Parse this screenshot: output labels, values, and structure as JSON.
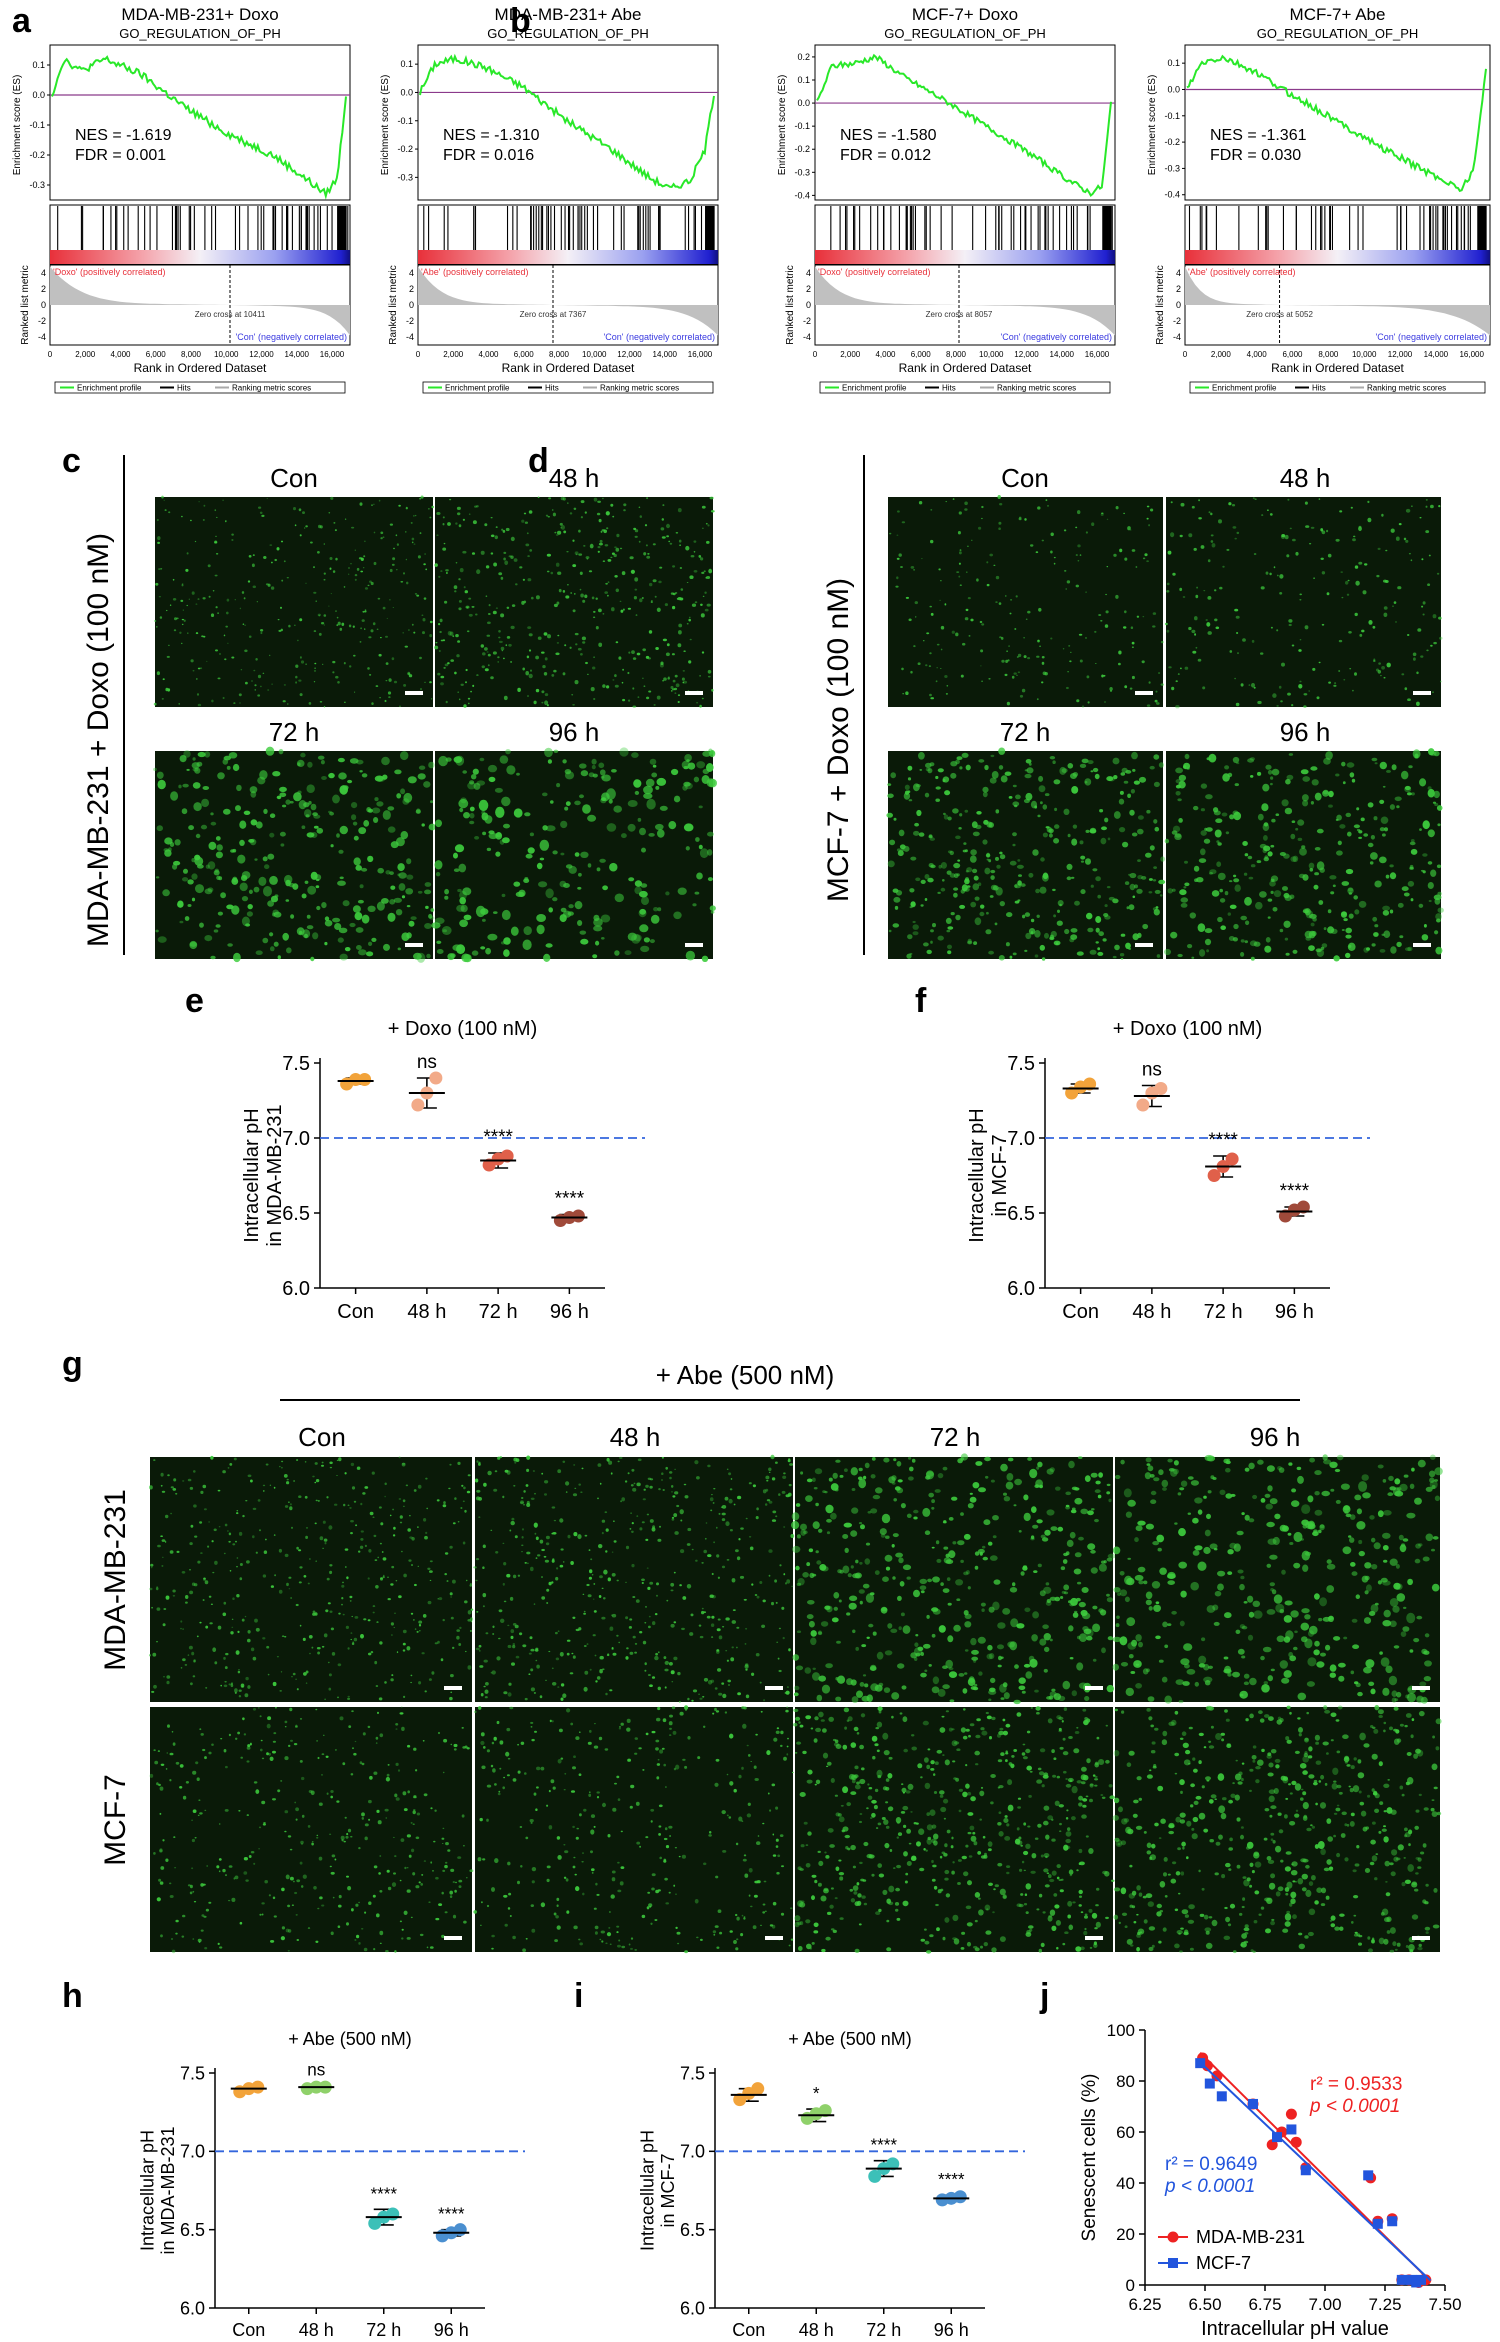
{
  "colors": {
    "es_line": "#29e829",
    "hits": "#000000",
    "metric_fill": "#c0c0c0",
    "zero_line": "#8b3a8b",
    "pos_label": "#e8303a",
    "neg_label": "#3a3ae0",
    "guide": "#3366dd",
    "micrograph_bg": "#0a1a08",
    "cell": "#3dcc3d",
    "red_fit": "#ee2222",
    "blue_fit": "#2255dd",
    "con": "#f2a33a",
    "h48": "#f2aa88",
    "h72": "#e0604a",
    "h96": "#a04a3a",
    "abe48": "#8fd16a",
    "abe72": "#3cc0b8",
    "abe96": "#4a8fd0"
  },
  "panel_letters": {
    "a": "a",
    "b": "b",
    "c": "c",
    "d": "d",
    "e": "e",
    "f": "f",
    "g": "g",
    "h": "h",
    "i": "i",
    "j": "j"
  },
  "gsea_common": {
    "es_axis": "Enrichment score (ES)",
    "metric_axis": "Ranked list metric",
    "x_axis": "Rank in Ordered Dataset",
    "legend": [
      "Enrichment profile",
      "Hits",
      "Ranking metric scores"
    ],
    "x_ticks": [
      "0",
      "2,000",
      "4,000",
      "6,000",
      "8,000",
      "10,000",
      "12,000",
      "14,000",
      "16,000"
    ],
    "metric_ticks": [
      "4",
      "2",
      "0",
      "-2",
      "-4"
    ],
    "neg_label": "'Con' (negatively correlated)"
  },
  "gsea": [
    {
      "title": "MDA-MB-231+ Doxo",
      "gene_set": "GO_REGULATION_OF_PH",
      "nes": "NES = -1.619",
      "fdr": "FDR = 0.001",
      "pos_label": "'Doxo' (positively correlated)",
      "zero_cross": "Zero cross at 10411",
      "es_ticks": [
        "0.1",
        "0.0",
        "-0.1",
        "-0.2",
        "-0.3"
      ]
    },
    {
      "title": "MDA-MB-231+ Abe",
      "gene_set": "GO_REGULATION_OF_PH",
      "nes": "NES = -1.310",
      "fdr": "FDR = 0.016",
      "pos_label": "'Abe' (positively correlated)",
      "zero_cross": "Zero cross at 7367",
      "es_ticks": [
        "0.1",
        "0.0",
        "-0.1",
        "-0.2",
        "-0.3"
      ]
    },
    {
      "title": "MCF-7+ Doxo",
      "gene_set": "GO_REGULATION_OF_PH",
      "nes": "NES = -1.580",
      "fdr": "FDR = 0.012",
      "pos_label": "'Doxo' (positively correlated)",
      "zero_cross": "Zero cross at 8057",
      "es_ticks": [
        "0.2",
        "0.1",
        "0.0",
        "-0.1",
        "-0.2",
        "-0.3",
        "-0.4"
      ]
    },
    {
      "title": "MCF-7+ Abe",
      "gene_set": "GO_REGULATION_OF_PH",
      "nes": "NES = -1.361",
      "fdr": "FDR = 0.030",
      "pos_label": "'Abe' (positively correlated)",
      "zero_cross": "Zero cross at 5052",
      "es_ticks": [
        "0.1",
        "0.0",
        "-0.1",
        "-0.2",
        "-0.3",
        "-0.4"
      ]
    }
  ],
  "micrograph_sets": {
    "c": {
      "row_label": "MDA-MB-231 + Doxo (100 nM)",
      "titles": [
        "Con",
        "48 h",
        "72 h",
        "96 h"
      ]
    },
    "d": {
      "row_label": "MCF-7 + Doxo (100 nM)",
      "titles": [
        "Con",
        "48 h",
        "72 h",
        "96 h"
      ]
    },
    "g": {
      "treatment": "+ Abe (500 nM)",
      "titles": [
        "Con",
        "48 h",
        "72 h",
        "96 h"
      ],
      "rows": [
        "MDA-MB-231",
        "MCF-7"
      ]
    }
  },
  "chart_data": [
    {
      "panel": "e",
      "type": "scatter",
      "title": "+ Doxo (100 nM)",
      "ylabel": "Intracellular pH\nin MDA-MB-231",
      "categories": [
        "Con",
        "48 h",
        "72 h",
        "96 h"
      ],
      "ylim": [
        6.0,
        7.5
      ],
      "yticks": [
        "6.0",
        "6.5",
        "7.0",
        "7.5"
      ],
      "reference_line": 7.0,
      "points": [
        [
          7.36,
          7.39,
          7.39
        ],
        [
          7.22,
          7.3,
          7.4
        ],
        [
          6.82,
          6.86,
          6.88
        ],
        [
          6.45,
          6.47,
          6.48
        ]
      ],
      "means": [
        7.38,
        7.3,
        6.85,
        6.47
      ],
      "sd": [
        0.02,
        0.1,
        0.05,
        0.02
      ],
      "significance": [
        "",
        "ns",
        "****",
        "****"
      ],
      "point_colors": [
        "con",
        "h48",
        "h72",
        "h96"
      ]
    },
    {
      "panel": "f",
      "type": "scatter",
      "title": "+ Doxo (100 nM)",
      "ylabel": "Intracellular pH\nin MCF-7",
      "categories": [
        "Con",
        "48 h",
        "72 h",
        "96 h"
      ],
      "ylim": [
        6.0,
        7.5
      ],
      "yticks": [
        "6.0",
        "6.5",
        "7.0",
        "7.5"
      ],
      "reference_line": 7.0,
      "points": [
        [
          7.3,
          7.34,
          7.36
        ],
        [
          7.22,
          7.3,
          7.33
        ],
        [
          6.75,
          6.81,
          6.86
        ],
        [
          6.48,
          6.52,
          6.54
        ]
      ],
      "means": [
        7.33,
        7.28,
        6.81,
        6.51
      ],
      "sd": [
        0.03,
        0.07,
        0.07,
        0.03
      ],
      "significance": [
        "",
        "ns",
        "****",
        "****"
      ],
      "point_colors": [
        "con",
        "h48",
        "h72",
        "h96"
      ]
    },
    {
      "panel": "h",
      "type": "scatter",
      "title": "+ Abe (500 nM)",
      "ylabel": "Intracellular pH\nin MDA-MB-231",
      "categories": [
        "Con",
        "48 h",
        "72 h",
        "96 h"
      ],
      "ylim": [
        6.0,
        7.5
      ],
      "yticks": [
        "6.0",
        "6.5",
        "7.0",
        "7.5"
      ],
      "reference_line": 7.0,
      "points": [
        [
          7.38,
          7.4,
          7.41
        ],
        [
          7.4,
          7.41,
          7.41
        ],
        [
          6.54,
          6.58,
          6.6
        ],
        [
          6.46,
          6.48,
          6.5
        ]
      ],
      "means": [
        7.4,
        7.41,
        6.58,
        6.48
      ],
      "sd": [
        0.01,
        0.01,
        0.05,
        0.02
      ],
      "significance": [
        "",
        "ns",
        "****",
        "****"
      ],
      "point_colors": [
        "con",
        "abe48",
        "abe72",
        "abe96"
      ]
    },
    {
      "panel": "i",
      "type": "scatter",
      "title": "+ Abe (500 nM)",
      "ylabel": "Intracellular pH\nin MCF-7",
      "categories": [
        "Con",
        "48 h",
        "72 h",
        "96 h"
      ],
      "ylim": [
        6.0,
        7.5
      ],
      "yticks": [
        "6.0",
        "6.5",
        "7.0",
        "7.5"
      ],
      "reference_line": 7.0,
      "points": [
        [
          7.33,
          7.37,
          7.4
        ],
        [
          7.21,
          7.24,
          7.26
        ],
        [
          6.84,
          6.89,
          6.92
        ],
        [
          6.69,
          6.7,
          6.71
        ]
      ],
      "means": [
        7.36,
        7.23,
        6.89,
        6.7
      ],
      "sd": [
        0.04,
        0.04,
        0.05,
        0.02
      ],
      "significance": [
        "",
        "*",
        "****",
        "****"
      ],
      "point_colors": [
        "con",
        "abe48",
        "abe72",
        "abe96"
      ]
    },
    {
      "panel": "j",
      "type": "scatter",
      "xlabel": "Intracellular pH value",
      "ylabel": "Senescent cells (%)",
      "xlim": [
        6.25,
        7.5
      ],
      "ylim": [
        0,
        100
      ],
      "xticks": [
        "6.25",
        "6.50",
        "6.75",
        "7.00",
        "7.25",
        "7.50"
      ],
      "yticks": [
        "0",
        "20",
        "40",
        "60",
        "80",
        "100"
      ],
      "series": [
        {
          "name": "MDA-MB-231",
          "color": "red_fit",
          "r2": "r² = 0.9533",
          "p": "p < 0.0001",
          "x": [
            6.49,
            6.51,
            6.55,
            6.7,
            6.78,
            6.82,
            6.86,
            6.88,
            6.92,
            7.19,
            7.22,
            7.28,
            7.32,
            7.35,
            7.39,
            7.41,
            7.42
          ],
          "y": [
            89,
            86,
            82,
            71,
            55,
            60,
            67,
            56,
            46,
            42,
            25,
            26,
            2,
            2,
            1,
            2,
            2
          ]
        },
        {
          "name": "MCF-7",
          "color": "blue_fit",
          "r2": "r² = 0.9649",
          "p": "p < 0.0001",
          "x": [
            6.48,
            6.52,
            6.57,
            6.7,
            6.8,
            6.86,
            6.92,
            7.18,
            7.22,
            7.28,
            7.32,
            7.36,
            7.38,
            7.4
          ],
          "y": [
            87,
            79,
            74,
            71,
            58,
            61,
            45,
            43,
            24,
            25,
            2,
            2,
            1,
            2
          ]
        }
      ]
    }
  ]
}
